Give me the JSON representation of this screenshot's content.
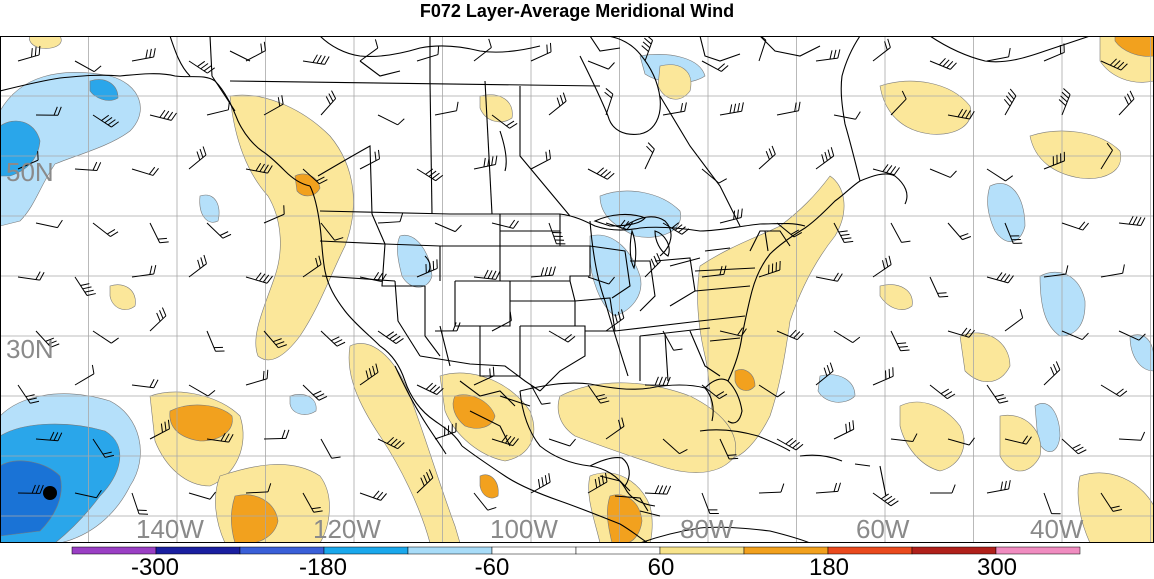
{
  "title": "F072 Layer-Average Meridional Wind",
  "lat_labels": [
    "50N",
    "30N"
  ],
  "lon_labels": [
    "140W",
    "120W",
    "100W",
    "80W",
    "60W",
    "40W"
  ],
  "colorbar": {
    "ticks": [
      "-300",
      "-180",
      "-60",
      "60",
      "180",
      "300"
    ],
    "colors": [
      "#9a3fc4",
      "#1a1fa0",
      "#3a5fd8",
      "#1aa8ec",
      "#a8dcf8",
      "#ffffff",
      "#ffffff",
      "#f8e48c",
      "#f2a11e",
      "#ea4a1e",
      "#b0201a",
      "#f08cc0"
    ]
  },
  "fill_colors": {
    "pos1": "#fbe79a",
    "pos2": "#f2a11e",
    "neg1": "#b5e0fa",
    "neg2": "#2aa6ea",
    "neg3": "#1a73d6"
  }
}
